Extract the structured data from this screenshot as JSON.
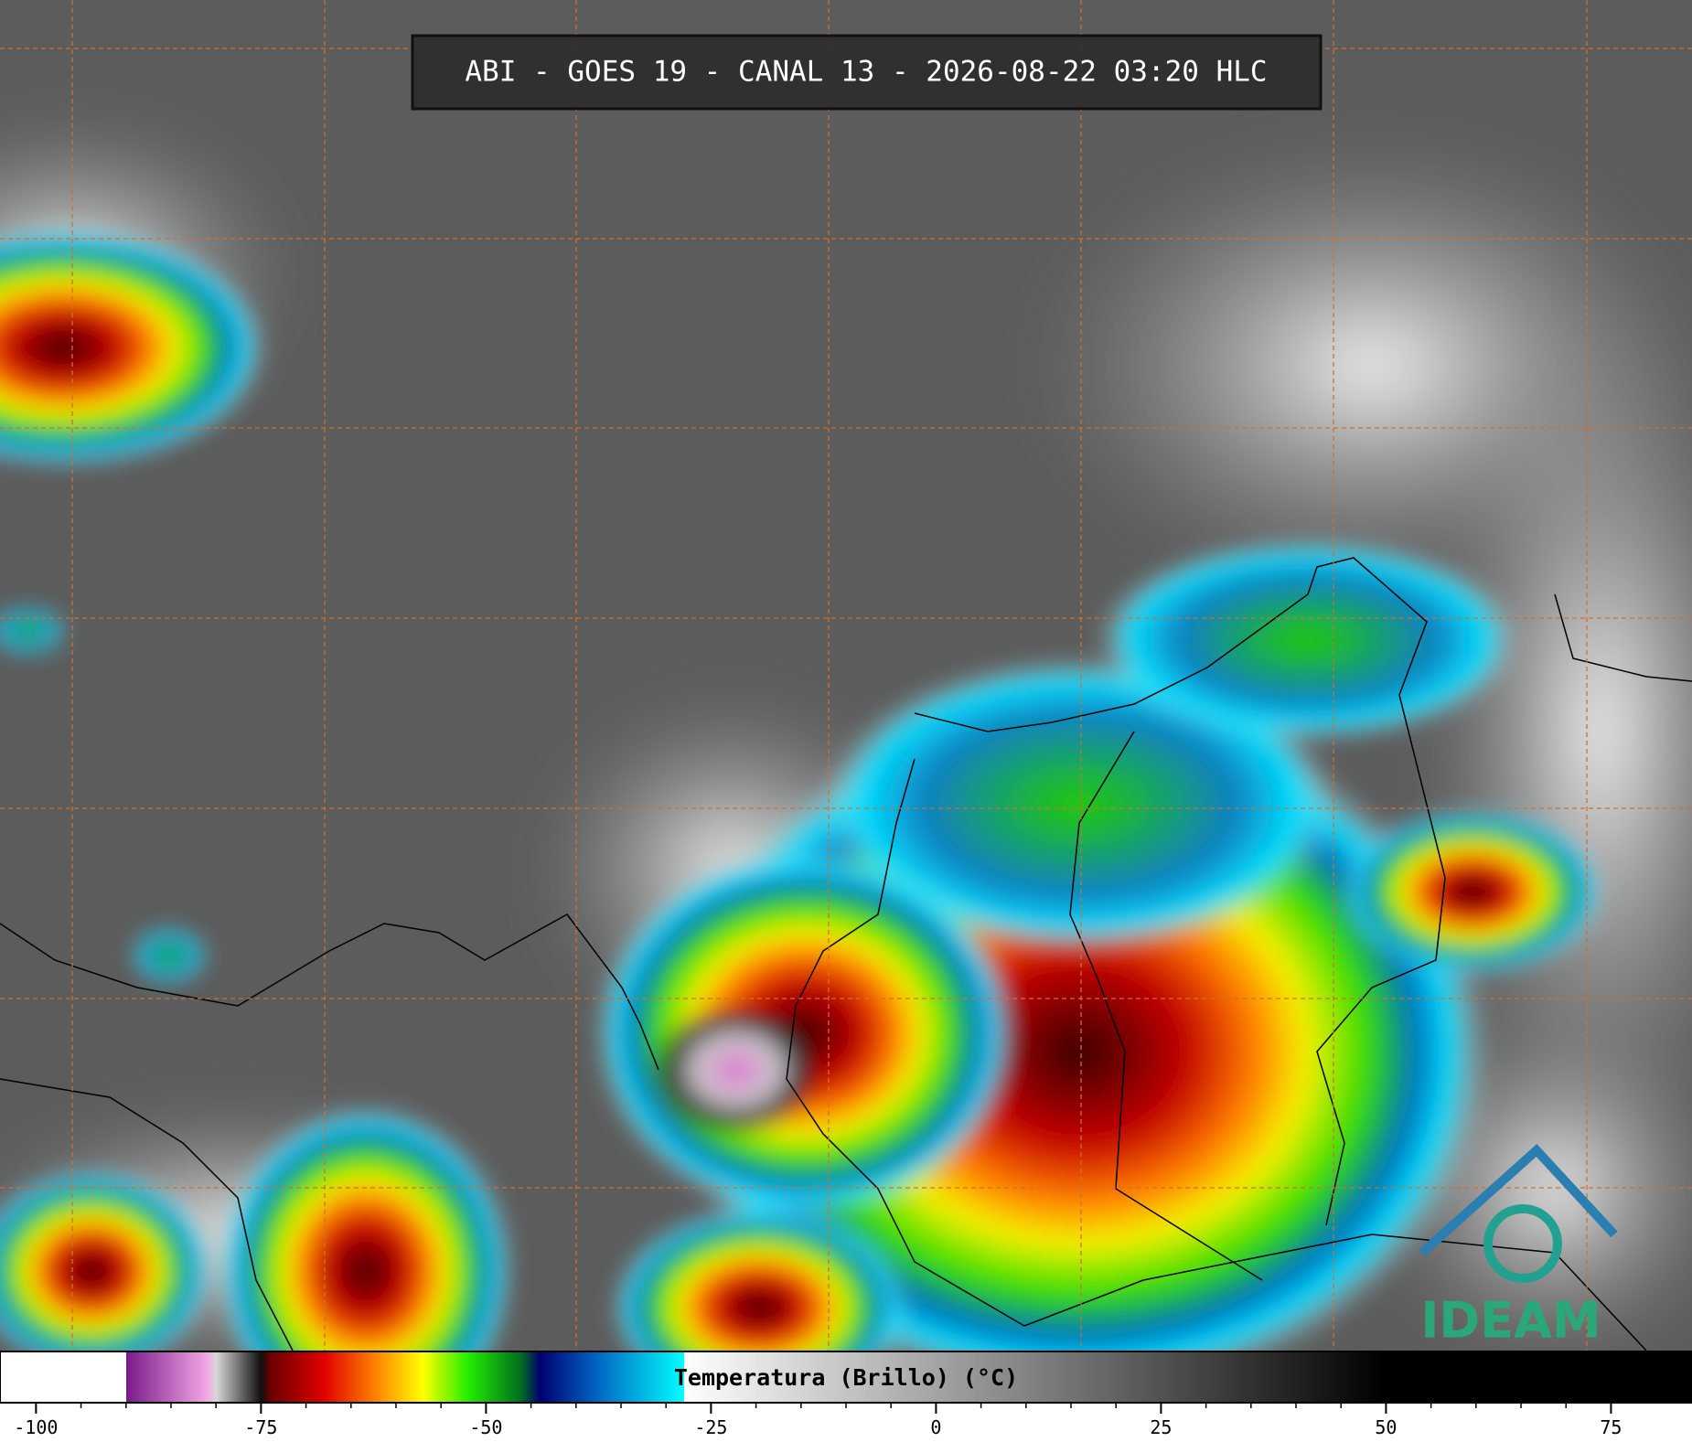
{
  "header": {
    "title": "ABI - GOES 19 - CANAL 13 - 2026-08-22 03:20 HLC"
  },
  "colorbar": {
    "label": "Temperatura (Brillo) (°C)",
    "range": [
      -104,
      84
    ],
    "ticks": [
      -100,
      -75,
      -50,
      -25,
      0,
      25,
      50,
      75
    ],
    "stops": [
      {
        "value": -90,
        "color": "#ffffff"
      },
      {
        "value": -90,
        "color": "#7a1a8a"
      },
      {
        "value": -81,
        "color": "#f2a6e6"
      },
      {
        "value": -80,
        "color": "#d8d8d8"
      },
      {
        "value": -75,
        "color": "#101010"
      },
      {
        "value": -74,
        "color": "#6a0000"
      },
      {
        "value": -68,
        "color": "#e00000"
      },
      {
        "value": -62,
        "color": "#ff8800"
      },
      {
        "value": -57,
        "color": "#ffff00"
      },
      {
        "value": -52,
        "color": "#22ee00"
      },
      {
        "value": -46,
        "color": "#006a20"
      },
      {
        "value": -44,
        "color": "#000070"
      },
      {
        "value": -38,
        "color": "#0060c0"
      },
      {
        "value": -28,
        "color": "#00ffff"
      },
      {
        "value": -28,
        "color": "#ffffff"
      },
      {
        "value": 50,
        "color": "#000000"
      }
    ]
  },
  "logo": {
    "text": "IDEAM"
  }
}
